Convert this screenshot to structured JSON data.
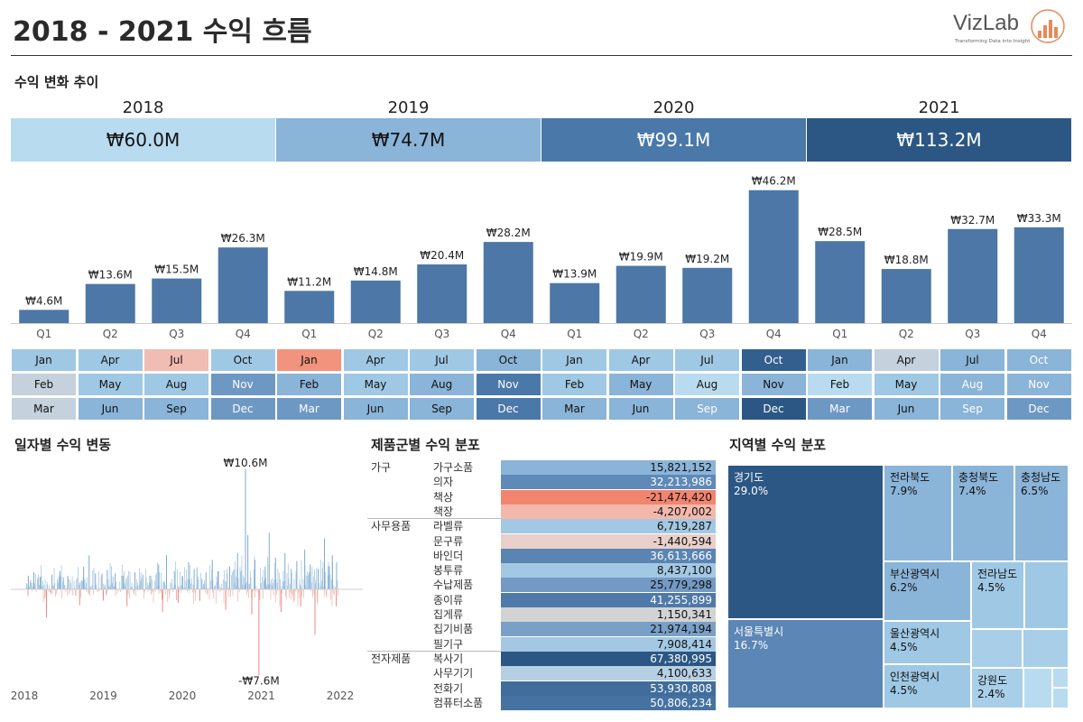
{
  "header": {
    "title": "2018 - 2021 수익 흐름"
  },
  "logo": {
    "name": "VizLab",
    "tagline": "Transforming Data into Insight"
  },
  "sections": {
    "trend": "수익 변화 추이",
    "daily": "일자별 수익 변동",
    "product": "제품군별 수익 분포",
    "region": "지역별 수익 분포"
  },
  "colors": {
    "scale_light": "#b9dbef",
    "scale_mid": "#8ab4d8",
    "scale_steel": "#4a78a8",
    "scale_dark": "#2c5784",
    "bar": "#4c77a6",
    "negative_strong": "#f2856f",
    "negative_light": "#f1bcb2",
    "neutral_gray": "#cdd3d8"
  },
  "chart_data": [
    {
      "type": "table",
      "title": "수익 변화 추이",
      "years": [
        "2018",
        "2019",
        "2020",
        "2021"
      ],
      "totals": [
        "₩60.0M",
        "₩74.7M",
        "₩99.1M",
        "₩113.2M"
      ]
    },
    {
      "type": "bar",
      "categories": [
        "Q1",
        "Q2",
        "Q3",
        "Q4",
        "Q1",
        "Q2",
        "Q3",
        "Q4",
        "Q1",
        "Q2",
        "Q3",
        "Q4",
        "Q1",
        "Q2",
        "Q3",
        "Q4"
      ],
      "years": [
        "2018",
        "2018",
        "2018",
        "2018",
        "2019",
        "2019",
        "2019",
        "2019",
        "2020",
        "2020",
        "2020",
        "2020",
        "2021",
        "2021",
        "2021",
        "2021"
      ],
      "values": [
        4.6,
        13.6,
        15.5,
        26.3,
        11.2,
        14.8,
        20.4,
        28.2,
        13.9,
        19.9,
        19.2,
        46.2,
        28.5,
        18.8,
        32.7,
        33.3
      ],
      "labels": [
        "₩4.6M",
        "₩13.6M",
        "₩15.5M",
        "₩26.3M",
        "₩11.2M",
        "₩14.8M",
        "₩20.4M",
        "₩28.2M",
        "₩13.9M",
        "₩19.9M",
        "₩19.2M",
        "₩46.2M",
        "₩28.5M",
        "₩18.8M",
        "₩32.7M",
        "₩33.3M"
      ],
      "ylim": [
        0,
        50
      ]
    },
    {
      "type": "heatmap",
      "months": [
        [
          "Jan",
          "Feb",
          "Mar",
          "Apr",
          "May",
          "Jun",
          "Jul",
          "Aug",
          "Sep",
          "Oct",
          "Nov",
          "Dec"
        ],
        [
          "Jan",
          "Feb",
          "Mar",
          "Apr",
          "May",
          "Jun",
          "Jul",
          "Aug",
          "Sep",
          "Oct",
          "Nov",
          "Dec"
        ],
        [
          "Jan",
          "Feb",
          "Mar",
          "Apr",
          "May",
          "Jun",
          "Jul",
          "Aug",
          "Sep",
          "Oct",
          "Nov",
          "Dec"
        ],
        [
          "Jan",
          "Feb",
          "Mar",
          "Apr",
          "May",
          "Jun",
          "Jul",
          "Aug",
          "Sep",
          "Oct",
          "Nov",
          "Dec"
        ]
      ],
      "cell_colors": [
        [
          "#9fc8e4",
          "#c5d1dc",
          "#c5d1dc",
          "#9fc8e4",
          "#9fc8e4",
          "#8ab4d8",
          "#f1bcb2",
          "#9fc8e4",
          "#8ab4d8",
          "#9fc8e4",
          "#6e98c4",
          "#6e98c4"
        ],
        [
          "#f2937e",
          "#8ab4d8",
          "#6e98c4",
          "#9fc8e4",
          "#9fc8e4",
          "#8ab4d8",
          "#9fc8e4",
          "#8ab4d8",
          "#8ab4d8",
          "#8ab4d8",
          "#4a78a8",
          "#4a78a8"
        ],
        [
          "#9fc8e4",
          "#9fc8e4",
          "#8ab4d8",
          "#9fc8e4",
          "#8ab4d8",
          "#8ab4d8",
          "#9fc8e4",
          "#b9dbef",
          "#8ab4d8",
          "#335f8f",
          "#8ab4d8",
          "#2c5784"
        ],
        [
          "#8ab4d8",
          "#b9dbef",
          "#6e98c4",
          "#c5d1dc",
          "#9fc8e4",
          "#8ab4d8",
          "#8ab4d8",
          "#8ab4d8",
          "#8ab4d8",
          "#8ab4d8",
          "#8ab4d8",
          "#6e98c4"
        ]
      ],
      "text_colors": [
        [
          "#111",
          "#111",
          "#111",
          "#111",
          "#111",
          "#111",
          "#111",
          "#111",
          "#111",
          "#111",
          "#fff",
          "#fff"
        ],
        [
          "#111",
          "#111",
          "#fff",
          "#111",
          "#111",
          "#111",
          "#111",
          "#111",
          "#111",
          "#111",
          "#fff",
          "#fff"
        ],
        [
          "#111",
          "#111",
          "#111",
          "#111",
          "#111",
          "#111",
          "#111",
          "#111",
          "#fff",
          "#fff",
          "#111",
          "#fff"
        ],
        [
          "#111",
          "#111",
          "#fff",
          "#111",
          "#111",
          "#111",
          "#111",
          "#fff",
          "#fff",
          "#fff",
          "#fff",
          "#fff"
        ]
      ]
    },
    {
      "type": "line",
      "title": "일자별 수익 변동",
      "x_ticks": [
        "2018",
        "2019",
        "2020",
        "2021",
        "2022"
      ],
      "xlim": [
        2018,
        2022
      ],
      "ylim": [
        -8,
        11
      ],
      "annotations": [
        {
          "label": "₩10.6M",
          "x": 2020.8,
          "y": 10.6
        },
        {
          "label": "-₩7.6M",
          "x": 2020.97,
          "y": -7.6
        }
      ],
      "spikes": [
        {
          "x": 2018.05,
          "y": 1.2
        },
        {
          "x": 2018.12,
          "y": 1.5
        },
        {
          "x": 2018.2,
          "y": 1.1
        },
        {
          "x": 2018.28,
          "y": -2.5
        },
        {
          "x": 2018.35,
          "y": 1.3
        },
        {
          "x": 2018.45,
          "y": 1.6
        },
        {
          "x": 2018.55,
          "y": 1.2
        },
        {
          "x": 2018.7,
          "y": -1.4
        },
        {
          "x": 2018.75,
          "y": 2.0
        },
        {
          "x": 2018.82,
          "y": 3.0
        },
        {
          "x": 2018.9,
          "y": 1.4
        },
        {
          "x": 2019.0,
          "y": -1.0
        },
        {
          "x": 2019.05,
          "y": 1.7
        },
        {
          "x": 2019.15,
          "y": 1.4
        },
        {
          "x": 2019.25,
          "y": 1.2
        },
        {
          "x": 2019.3,
          "y": -1.5
        },
        {
          "x": 2019.4,
          "y": 1.5
        },
        {
          "x": 2019.5,
          "y": 1.3
        },
        {
          "x": 2019.6,
          "y": 1.2
        },
        {
          "x": 2019.7,
          "y": 2.2
        },
        {
          "x": 2019.75,
          "y": -2.0
        },
        {
          "x": 2019.8,
          "y": 3.0
        },
        {
          "x": 2019.9,
          "y": 1.6
        },
        {
          "x": 2019.95,
          "y": -1.2
        },
        {
          "x": 2020.0,
          "y": 1.2
        },
        {
          "x": 2020.08,
          "y": 2.4
        },
        {
          "x": 2020.15,
          "y": 1.8
        },
        {
          "x": 2020.22,
          "y": -1.0
        },
        {
          "x": 2020.3,
          "y": 1.5
        },
        {
          "x": 2020.38,
          "y": 2.6
        },
        {
          "x": 2020.45,
          "y": 1.6
        },
        {
          "x": 2020.55,
          "y": -1.8
        },
        {
          "x": 2020.6,
          "y": 2.0
        },
        {
          "x": 2020.7,
          "y": 3.2
        },
        {
          "x": 2020.8,
          "y": 10.6
        },
        {
          "x": 2020.83,
          "y": 4.8
        },
        {
          "x": 2020.88,
          "y": -2.2
        },
        {
          "x": 2020.92,
          "y": 2.6
        },
        {
          "x": 2020.97,
          "y": -7.6
        },
        {
          "x": 2021.05,
          "y": 2.0
        },
        {
          "x": 2021.1,
          "y": 5.0
        },
        {
          "x": 2021.18,
          "y": 2.8
        },
        {
          "x": 2021.25,
          "y": -2.0
        },
        {
          "x": 2021.3,
          "y": 3.2
        },
        {
          "x": 2021.38,
          "y": 1.8
        },
        {
          "x": 2021.45,
          "y": 2.5
        },
        {
          "x": 2021.5,
          "y": -1.5
        },
        {
          "x": 2021.55,
          "y": 3.5
        },
        {
          "x": 2021.62,
          "y": 2.2
        },
        {
          "x": 2021.68,
          "y": -4.0
        },
        {
          "x": 2021.72,
          "y": 1.8
        },
        {
          "x": 2021.8,
          "y": 4.5
        },
        {
          "x": 2021.85,
          "y": 2.0
        },
        {
          "x": 2021.9,
          "y": 3.0
        },
        {
          "x": 2021.95,
          "y": -1.5
        }
      ]
    },
    {
      "type": "table",
      "title": "제품군별 수익 분포",
      "rows": [
        {
          "category": "가구",
          "sub": "가구소품",
          "value": "15,821,152",
          "color": "#8ab4d8",
          "text": "#111"
        },
        {
          "category": "",
          "sub": "의자",
          "value": "32,213,986",
          "color": "#5f89b7",
          "text": "#fff"
        },
        {
          "category": "",
          "sub": "책상",
          "value": "-21,474,420",
          "color": "#f2856f",
          "text": "#111"
        },
        {
          "category": "",
          "sub": "책장",
          "value": "-4,207,002",
          "color": "#f3b8ab",
          "text": "#111"
        },
        {
          "category": "사무용품",
          "sub": "라벨류",
          "value": "6,719,287",
          "color": "#a3c8e3",
          "text": "#111"
        },
        {
          "category": "",
          "sub": "문구류",
          "value": "-1,440,594",
          "color": "#ead0ca",
          "text": "#111"
        },
        {
          "category": "",
          "sub": "바인더",
          "value": "36,613,666",
          "color": "#5a84b2",
          "text": "#fff"
        },
        {
          "category": "",
          "sub": "봉투류",
          "value": "8,437,100",
          "color": "#a3c8e3",
          "text": "#111"
        },
        {
          "category": "",
          "sub": "수납제품",
          "value": "25,779,298",
          "color": "#7399c4",
          "text": "#111"
        },
        {
          "category": "",
          "sub": "종이류",
          "value": "41,255,899",
          "color": "#4f79a8",
          "text": "#fff"
        },
        {
          "category": "",
          "sub": "집게류",
          "value": "1,150,341",
          "color": "#d3d3d3",
          "text": "#111"
        },
        {
          "category": "",
          "sub": "집기비품",
          "value": "21,974,194",
          "color": "#7aa0c8",
          "text": "#111"
        },
        {
          "category": "",
          "sub": "필기구",
          "value": "7,908,414",
          "color": "#a3c8e3",
          "text": "#111"
        },
        {
          "category": "전자제품",
          "sub": "복사기",
          "value": "67,380,995",
          "color": "#2c5784",
          "text": "#fff"
        },
        {
          "category": "",
          "sub": "사무기기",
          "value": "4,100,633",
          "color": "#b6cfe2",
          "text": "#111"
        },
        {
          "category": "",
          "sub": "전화기",
          "value": "53,930,808",
          "color": "#416d9c",
          "text": "#fff"
        },
        {
          "category": "",
          "sub": "컴퓨터소품",
          "value": "50,806,234",
          "color": "#4672a2",
          "text": "#fff"
        }
      ]
    },
    {
      "type": "treemap",
      "title": "지역별 수익 분포",
      "cells": [
        {
          "name": "경기도",
          "pct": "29.0%",
          "value": 29.0,
          "color": "#2c5784",
          "text": "dark"
        },
        {
          "name": "서울특별시",
          "pct": "16.7%",
          "value": 16.7,
          "color": "#5b86b5",
          "text": "dark"
        },
        {
          "name": "전라북도",
          "pct": "7.9%",
          "value": 7.9,
          "color": "#8ab4d8",
          "text": "light"
        },
        {
          "name": "충청북도",
          "pct": "7.4%",
          "value": 7.4,
          "color": "#8ab4d8",
          "text": "light"
        },
        {
          "name": "충청남도",
          "pct": "6.5%",
          "value": 6.5,
          "color": "#8ab4d8",
          "text": "light"
        },
        {
          "name": "부산광역시",
          "pct": "6.2%",
          "value": 6.2,
          "color": "#8ab4d8",
          "text": "light"
        },
        {
          "name": "전라남도",
          "pct": "4.5%",
          "value": 4.5,
          "color": "#9fc8e4",
          "text": "light"
        },
        {
          "name": "울산광역시",
          "pct": "4.5%",
          "value": 4.5,
          "color": "#9fc8e4",
          "text": "light"
        },
        {
          "name": "인천광역시",
          "pct": "4.5%",
          "value": 4.5,
          "color": "#9fc8e4",
          "text": "light"
        },
        {
          "name": "강원도",
          "pct": "2.4%",
          "value": 2.4,
          "color": "#a9cfe8",
          "text": "light"
        },
        {
          "name": "",
          "pct": "",
          "value": 0,
          "color": "#9fc8e4",
          "text": "light"
        },
        {
          "name": "",
          "pct": "",
          "value": 0,
          "color": "#a9cfe8",
          "text": "light"
        },
        {
          "name": "",
          "pct": "",
          "value": 0,
          "color": "#a9cfe8",
          "text": "light"
        },
        {
          "name": "",
          "pct": "",
          "value": 0,
          "color": "#b9dbef",
          "text": "light"
        },
        {
          "name": "",
          "pct": "",
          "value": 0,
          "color": "#b9dbef",
          "text": "light"
        },
        {
          "name": "",
          "pct": "",
          "value": 0,
          "color": "#b9dbef",
          "text": "light"
        }
      ]
    }
  ]
}
